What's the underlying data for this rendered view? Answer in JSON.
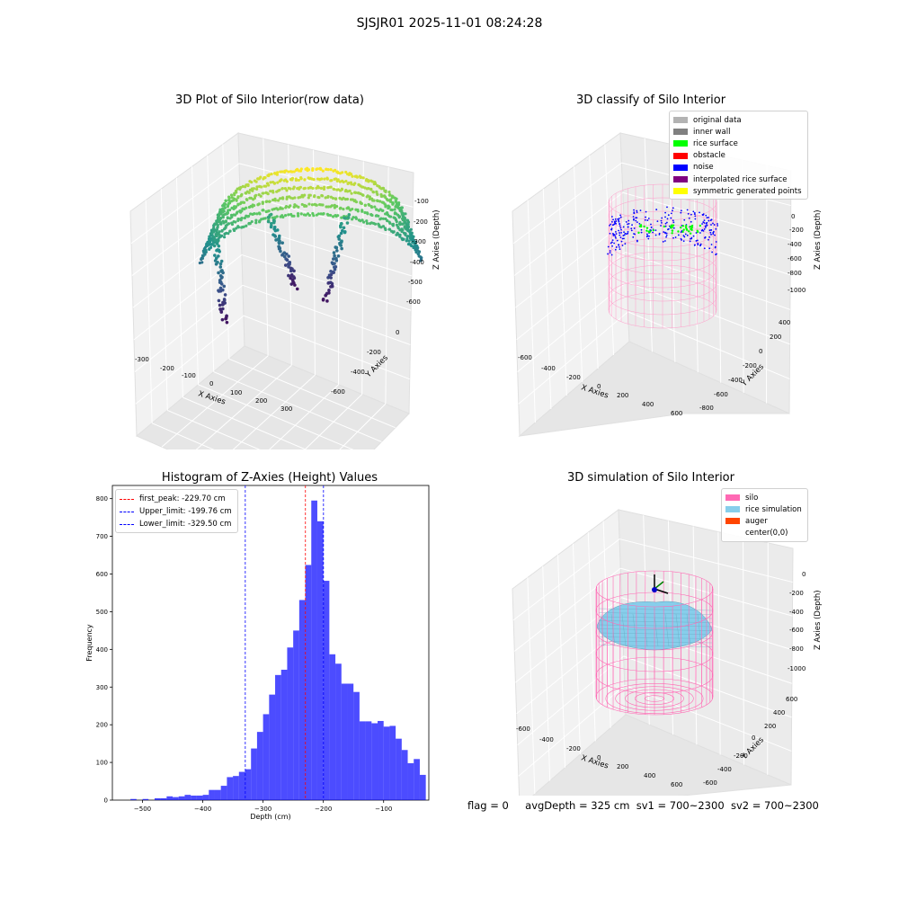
{
  "suptitle": "SJSJR01 2025-11-01 08:24:28",
  "footer": {
    "flag": "flag = 0",
    "avg": "avgDepth = 325 cm",
    "sv1": "sv1 = 700~2300",
    "sv2": "sv2 = 700~2300"
  },
  "panels": {
    "raw": {
      "title": "3D Plot of Silo Interior(row data)",
      "xlabel": "X Axies",
      "ylabel": "Y Axies",
      "zlabel": "Z Axies (Depth)",
      "xticks": [
        "-300",
        "-200",
        "-100",
        "0",
        "100",
        "200",
        "300"
      ],
      "yticks": [
        "-600",
        "-400",
        "-200",
        "0"
      ],
      "zticks": [
        "-100",
        "-200",
        "-300",
        "-400",
        "-500",
        "-600"
      ]
    },
    "classify": {
      "title": "3D classify of Silo Interior",
      "xlabel": "X Axies",
      "ylabel": "Y Axies",
      "zlabel": "Z Axies (Depth)",
      "xticks": [
        "-600",
        "-400",
        "-200",
        "0",
        "200",
        "400",
        "600"
      ],
      "yticks": [
        "-800",
        "-600",
        "-400",
        "-200",
        "0",
        "200",
        "400"
      ],
      "zticks": [
        "0",
        "-200",
        "-400",
        "-600",
        "-800",
        "-1000"
      ],
      "legend": [
        {
          "label": "original data",
          "color": "#b3b3b3"
        },
        {
          "label": "inner wall",
          "color": "#808080"
        },
        {
          "label": "rice surface",
          "color": "#00ff00"
        },
        {
          "label": "obstacle",
          "color": "#ff0000"
        },
        {
          "label": "noise",
          "color": "#0000ff"
        },
        {
          "label": "interpolated rice surface",
          "color": "#800080"
        },
        {
          "label": "symmetric generated points",
          "color": "#ffff00"
        }
      ]
    },
    "simulation": {
      "title": "3D simulation of Silo Interior",
      "xlabel": "X Axies",
      "ylabel": "Y Axies",
      "zlabel": "Z Axies (Depth)",
      "xticks": [
        "-600",
        "-400",
        "-200",
        "0",
        "200",
        "400",
        "600"
      ],
      "yticks": [
        "-600",
        "-400",
        "-200",
        "0",
        "200",
        "400",
        "600"
      ],
      "zticks": [
        "0",
        "-200",
        "-400",
        "-600",
        "-800",
        "-1000"
      ],
      "legend": [
        {
          "label": "silo",
          "color": "#ff69b4"
        },
        {
          "label": "rice simulation",
          "color": "#87ceeb"
        },
        {
          "label": "auger",
          "color": "#ff4500"
        },
        {
          "label": "center(0,0)",
          "color": ""
        }
      ]
    }
  },
  "chart_data": {
    "type": "bar",
    "title": "Histogram of Z-Axies (Height) Values",
    "xlabel": "Depth (cm)",
    "ylabel": "Frequency",
    "xlim": [
      -550,
      -25
    ],
    "ylim": [
      0,
      835
    ],
    "xticks": [
      -500,
      -400,
      -300,
      -200,
      -100
    ],
    "yticks": [
      0,
      100,
      200,
      300,
      400,
      500,
      600,
      700,
      800
    ],
    "bar_color": "#0000ff",
    "bin_width": 10,
    "bins_left": [
      -520,
      -510,
      -500,
      -490,
      -480,
      -470,
      -460,
      -450,
      -440,
      -430,
      -420,
      -410,
      -400,
      -390,
      -380,
      -370,
      -360,
      -350,
      -340,
      -330,
      -320,
      -310,
      -300,
      -290,
      -280,
      -270,
      -260,
      -250,
      -240,
      -230,
      -220,
      -210,
      -200,
      -190,
      -180,
      -170,
      -160,
      -150,
      -140,
      -130,
      -120,
      -110,
      -100,
      -90,
      -80,
      -70,
      -60,
      -50,
      -40
    ],
    "values": [
      3,
      0,
      3,
      0,
      5,
      5,
      10,
      8,
      10,
      14,
      12,
      12,
      14,
      27,
      27,
      38,
      61,
      64,
      75,
      82,
      137,
      181,
      228,
      280,
      332,
      346,
      405,
      450,
      531,
      624,
      795,
      740,
      582,
      387,
      362,
      309,
      309,
      287,
      209,
      209,
      204,
      210,
      195,
      197,
      163,
      133,
      98,
      109,
      67
    ],
    "lines": [
      {
        "label": "first_peak: -229.70 cm",
        "x": -229.7,
        "color": "#ff0000"
      },
      {
        "label": "Upper_limit: -199.76 cm",
        "x": -199.76,
        "color": "#0000ff"
      },
      {
        "label": "Lower_limit: -329.50 cm",
        "x": -329.5,
        "color": "#0000ff"
      }
    ]
  }
}
